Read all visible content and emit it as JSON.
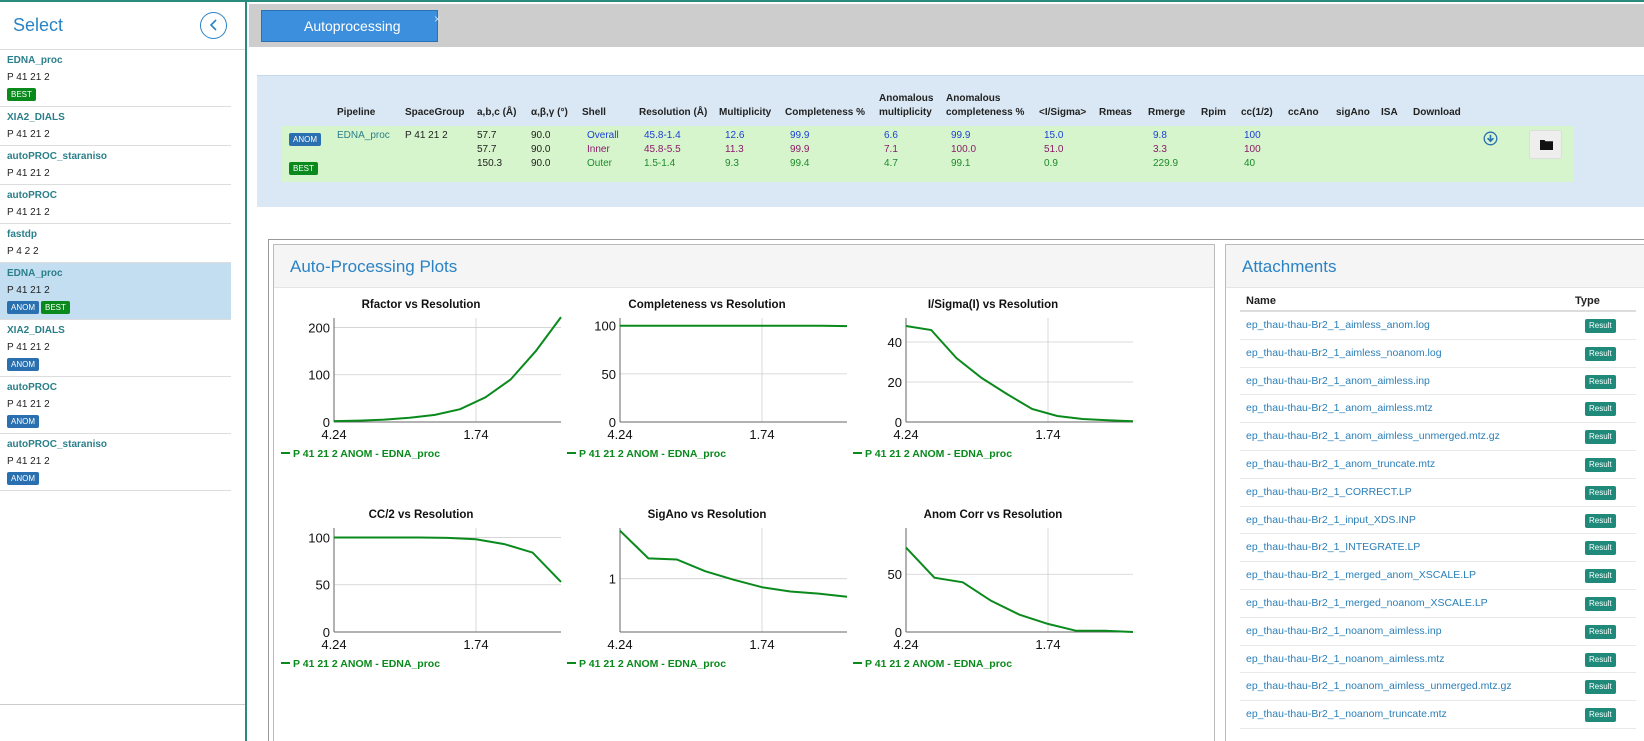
{
  "sidebar": {
    "title": "Select",
    "items": [
      {
        "name": "EDNA_proc",
        "spacegroup": "P 41 21 2",
        "badges": [
          "BEST"
        ],
        "selected": false
      },
      {
        "name": "XIA2_DIALS",
        "spacegroup": "P 41 21 2",
        "badges": [],
        "selected": false
      },
      {
        "name": "autoPROC_staraniso",
        "spacegroup": "P 41 21 2",
        "badges": [],
        "selected": false
      },
      {
        "name": "autoPROC",
        "spacegroup": "P 41 21 2",
        "badges": [],
        "selected": false
      },
      {
        "name": "fastdp",
        "spacegroup": "P 4 2 2",
        "badges": [],
        "selected": false
      },
      {
        "name": "EDNA_proc",
        "spacegroup": "P 41 21 2",
        "badges": [
          "ANOM",
          "BEST"
        ],
        "selected": true
      },
      {
        "name": "XIA2_DIALS",
        "spacegroup": "P 41 21 2",
        "badges": [
          "ANOM"
        ],
        "selected": false
      },
      {
        "name": "autoPROC",
        "spacegroup": "P 41 21 2",
        "badges": [
          "ANOM"
        ],
        "selected": false
      },
      {
        "name": "autoPROC_staraniso",
        "spacegroup": "P 41 21 2",
        "badges": [
          "ANOM"
        ],
        "selected": false
      }
    ]
  },
  "tabs": [
    {
      "label": "Autoprocessing",
      "close": "×"
    }
  ],
  "summary": {
    "headers": {
      "pipeline": "Pipeline",
      "spacegroup": "SpaceGroup",
      "cell": "a,b,c (Å)",
      "angles": "α,β,γ (°)",
      "shell": "Shell",
      "resolution": "Resolution (Å)",
      "multiplicity": "Multiplicity",
      "completeness": "Completeness %",
      "anom_mult_1": "Anomalous",
      "anom_mult_2": "multiplicity",
      "anom_comp_1": "Anomalous",
      "anom_comp_2": "completeness %",
      "isigma": "<I/Sigma>",
      "rmeas": "Rmeas",
      "rmerge": "Rmerge",
      "rpim": "Rpim",
      "cchalf": "cc(1/2)",
      "ccano": "ccAno",
      "sigano": "sigAno",
      "isa": "ISA",
      "download": "Download"
    },
    "anom_badge": "ANOM",
    "best_badge": "BEST",
    "pipeline": "EDNA_proc",
    "spacegroup": "P 41 21 2",
    "rows": [
      {
        "cell": "57.7",
        "angle": "90.0",
        "shell": "Overall",
        "resolution": "45.8-1.4",
        "multiplicity": "12.6",
        "completeness": "99.9",
        "anom_mult": "6.6",
        "anom_comp": "99.9",
        "isigma": "15.0",
        "rmerge": "9.8",
        "cchalf": "100"
      },
      {
        "cell": "57.7",
        "angle": "90.0",
        "shell": "Inner",
        "resolution": "45.8-5.5",
        "multiplicity": "11.3",
        "completeness": "99.9",
        "anom_mult": "7.1",
        "anom_comp": "100.0",
        "isigma": "51.0",
        "rmerge": "3.3",
        "cchalf": "100"
      },
      {
        "cell": "150.3",
        "angle": "90.0",
        "shell": "Outer",
        "resolution": "1.5-1.4",
        "multiplicity": "9.3",
        "completeness": "99.4",
        "anom_mult": "4.7",
        "anom_comp": "99.1",
        "isigma": "0.9",
        "rmerge": "229.9",
        "cchalf": "40"
      }
    ],
    "download_icon": "download-circle-icon",
    "folder_icon": "folder-icon"
  },
  "plots": {
    "title": "Auto-Processing Plots",
    "legend": "P 41 21 2 ANOM - EDNA_proc",
    "line_color": "#0a8a1c"
  },
  "chart_data": [
    {
      "type": "line",
      "title": "Rfactor vs Resolution",
      "x_ticks": [
        "4.24",
        "1.74"
      ],
      "y_ticks": [
        0,
        100,
        200
      ],
      "ylim": [
        0,
        220
      ],
      "series": [
        {
          "name": "P 41 21 2 ANOM - EDNA_proc",
          "values": [
            2,
            3,
            5,
            9,
            15,
            27,
            52,
            90,
            150,
            222
          ]
        }
      ]
    },
    {
      "type": "line",
      "title": "Completeness vs Resolution",
      "x_ticks": [
        "4.24",
        "1.74"
      ],
      "y_ticks": [
        0,
        50,
        100
      ],
      "ylim": [
        0,
        108
      ],
      "series": [
        {
          "name": "P 41 21 2 ANOM - EDNA_proc",
          "values": [
            100,
            100,
            100,
            100,
            100,
            100,
            100,
            100,
            100,
            99.6
          ]
        }
      ]
    },
    {
      "type": "line",
      "title": "I/Sigma(I) vs Resolution",
      "x_ticks": [
        "4.24",
        "1.74"
      ],
      "y_ticks": [
        0,
        20,
        40
      ],
      "ylim": [
        0,
        52
      ],
      "series": [
        {
          "name": "P 41 21 2 ANOM - EDNA_proc",
          "values": [
            48,
            46,
            32,
            22,
            14,
            6.5,
            3,
            1.5,
            0.9,
            0.4
          ]
        }
      ]
    },
    {
      "type": "line",
      "title": "CC/2 vs Resolution",
      "x_ticks": [
        "4.24",
        "1.74"
      ],
      "y_ticks": [
        0,
        50,
        100
      ],
      "ylim": [
        0,
        110
      ],
      "series": [
        {
          "name": "P 41 21 2 ANOM - EDNA_proc",
          "values": [
            100,
            100,
            100,
            100,
            99.5,
            98,
            93,
            84,
            53
          ]
        }
      ]
    },
    {
      "type": "line",
      "title": "SigAno vs Resolution",
      "x_ticks": [
        "4.24",
        "1.74"
      ],
      "y_ticks": [
        1
      ],
      "ylim": [
        0,
        1.95
      ],
      "series": [
        {
          "name": "P 41 21 2 ANOM - EDNA_proc",
          "values": [
            1.9,
            1.38,
            1.36,
            1.14,
            0.98,
            0.84,
            0.76,
            0.72,
            0.66
          ]
        }
      ]
    },
    {
      "type": "line",
      "title": "Anom Corr vs Resolution",
      "x_ticks": [
        "4.24",
        "1.74"
      ],
      "y_ticks": [
        0,
        50
      ],
      "ylim": [
        0,
        90
      ],
      "series": [
        {
          "name": "P 41 21 2 ANOM - EDNA_proc",
          "values": [
            73,
            47,
            43,
            27,
            15,
            7,
            1,
            1,
            0
          ]
        }
      ]
    }
  ],
  "attachments": {
    "title": "Attachments",
    "headers": {
      "name": "Name",
      "type": "Type"
    },
    "files": [
      {
        "name": "ep_thau-thau-Br2_1_aimless_anom.log",
        "type": "Result"
      },
      {
        "name": "ep_thau-thau-Br2_1_aimless_noanom.log",
        "type": "Result"
      },
      {
        "name": "ep_thau-thau-Br2_1_anom_aimless.inp",
        "type": "Result"
      },
      {
        "name": "ep_thau-thau-Br2_1_anom_aimless.mtz",
        "type": "Result"
      },
      {
        "name": "ep_thau-thau-Br2_1_anom_aimless_unmerged.mtz.gz",
        "type": "Result"
      },
      {
        "name": "ep_thau-thau-Br2_1_anom_truncate.mtz",
        "type": "Result"
      },
      {
        "name": "ep_thau-thau-Br2_1_CORRECT.LP",
        "type": "Result"
      },
      {
        "name": "ep_thau-thau-Br2_1_input_XDS.INP",
        "type": "Result"
      },
      {
        "name": "ep_thau-thau-Br2_1_INTEGRATE.LP",
        "type": "Result"
      },
      {
        "name": "ep_thau-thau-Br2_1_merged_anom_XSCALE.LP",
        "type": "Result"
      },
      {
        "name": "ep_thau-thau-Br2_1_merged_noanom_XSCALE.LP",
        "type": "Result"
      },
      {
        "name": "ep_thau-thau-Br2_1_noanom_aimless.inp",
        "type": "Result"
      },
      {
        "name": "ep_thau-thau-Br2_1_noanom_aimless.mtz",
        "type": "Result"
      },
      {
        "name": "ep_thau-thau-Br2_1_noanom_aimless_unmerged.mtz.gz",
        "type": "Result"
      },
      {
        "name": "ep_thau-thau-Br2_1_noanom_truncate.mtz",
        "type": "Result"
      }
    ]
  }
}
